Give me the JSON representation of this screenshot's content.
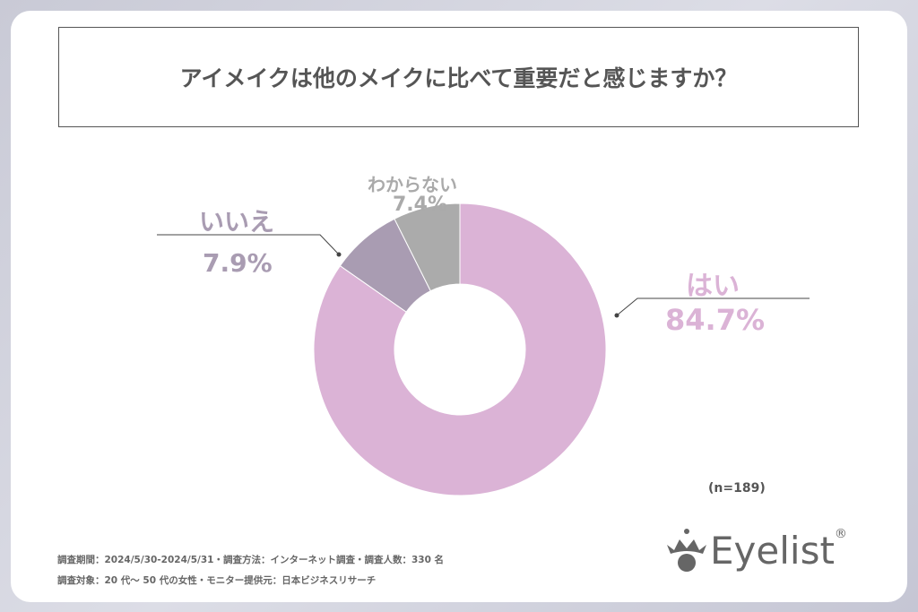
{
  "title": "アイメイクは他のメイクに比べて重要だと感じますか？",
  "chart_data": {
    "type": "pie",
    "donut": true,
    "title": "アイメイクは他のメイクに比べて重要だと感じますか？",
    "slices": [
      {
        "label": "はい",
        "value": 84.7,
        "display": "84.7%",
        "color": "#dbb3d6"
      },
      {
        "label": "いいえ",
        "value": 7.9,
        "display": "7.9%",
        "color": "#a99cb2"
      },
      {
        "label": "わからない",
        "value": 7.4,
        "display": "7.4%",
        "color": "#ababab"
      }
    ],
    "note": "(n=189)"
  },
  "footer": {
    "line1": "調査期間：2024/5/30-2024/5/31・調査方法：インターネット調査・調査人数：330 名",
    "line2": "調査対象：20 代～ 50 代の女性・モニター提供元：日本ビジネスリサーチ"
  },
  "logo": {
    "text": "Eyelist",
    "mark": "®"
  }
}
